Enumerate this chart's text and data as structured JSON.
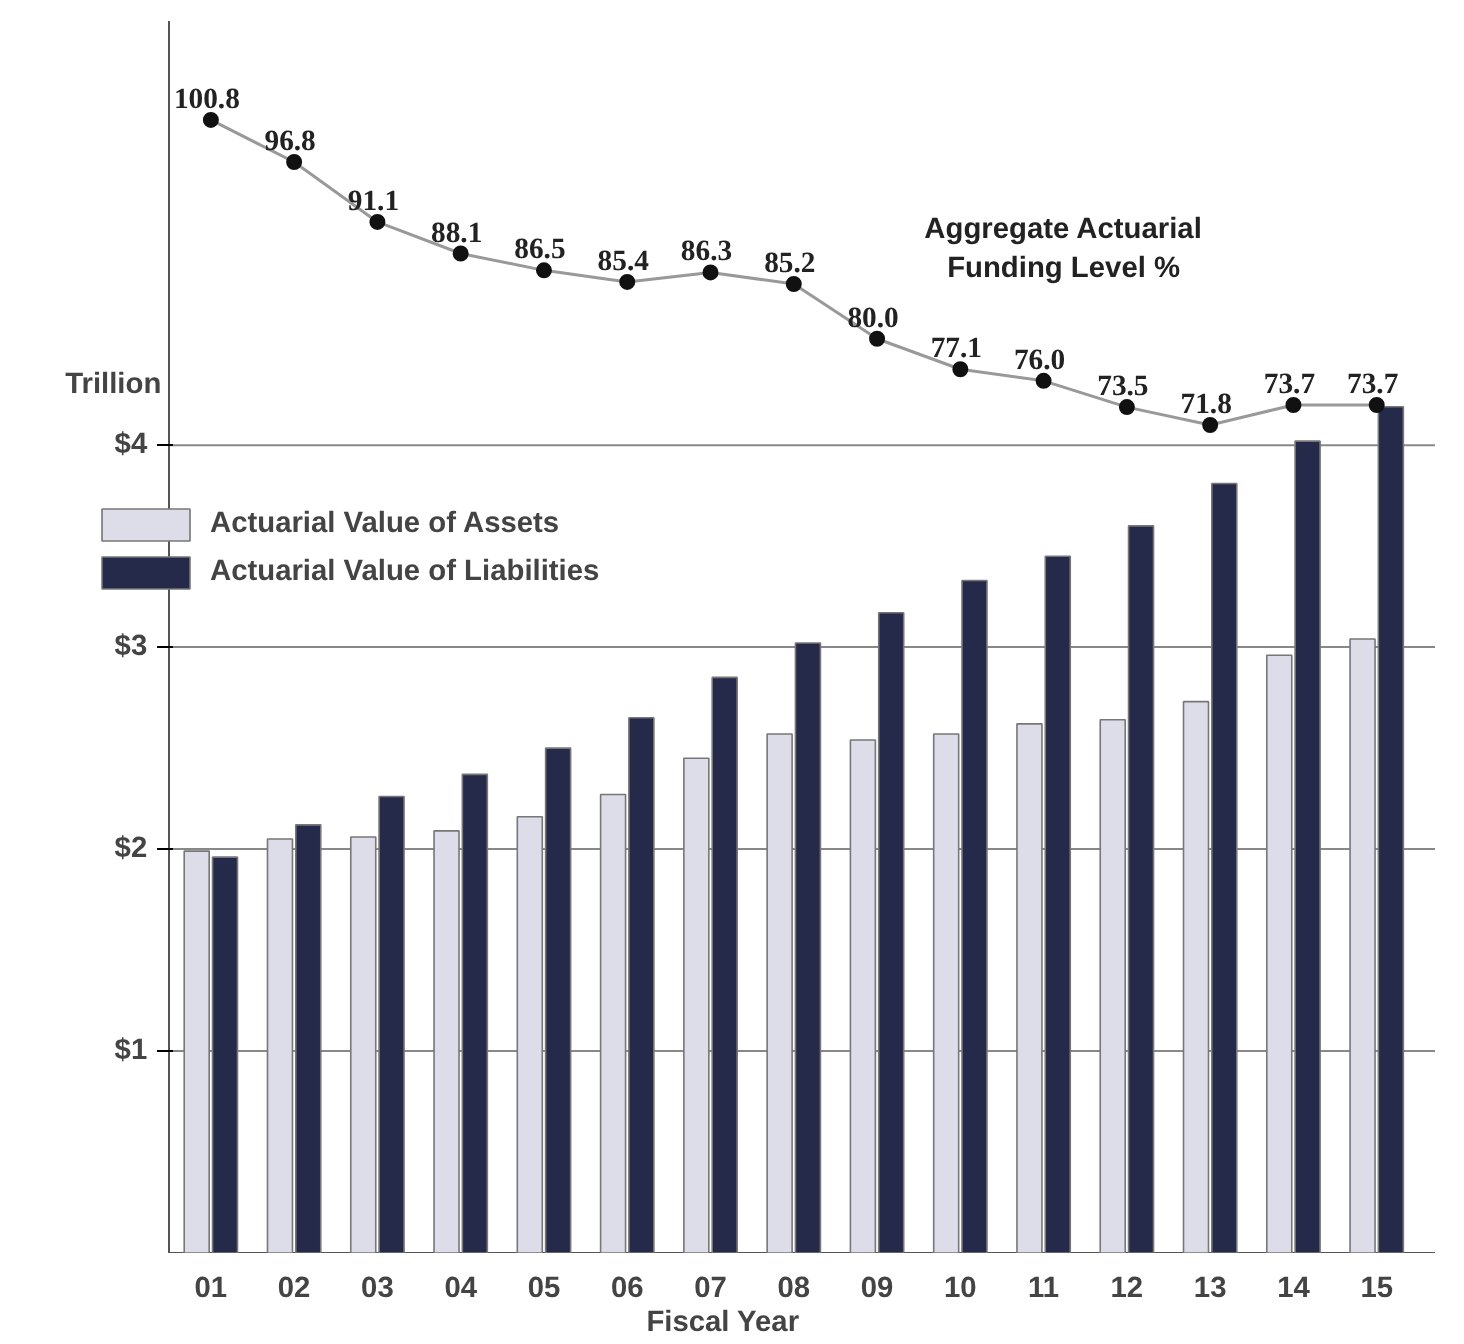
{
  "chart_data": {
    "type": "bar",
    "xlabel": "Fiscal Year",
    "ylabel": "Trillion",
    "categories": [
      "01",
      "02",
      "03",
      "04",
      "05",
      "06",
      "07",
      "08",
      "09",
      "10",
      "11",
      "12",
      "13",
      "14",
      "15"
    ],
    "series": [
      {
        "name": "Actuarial Value of Assets",
        "color": "#dcdde9",
        "values": [
          1.99,
          2.05,
          2.06,
          2.09,
          2.16,
          2.27,
          2.45,
          2.57,
          2.54,
          2.57,
          2.62,
          2.64,
          2.73,
          2.96,
          3.04
        ]
      },
      {
        "name": "Actuarial Value of Liabilities",
        "color": "#262a4a",
        "values": [
          1.96,
          2.12,
          2.26,
          2.37,
          2.5,
          2.65,
          2.85,
          3.02,
          3.17,
          3.33,
          3.45,
          3.6,
          3.81,
          4.02,
          4.19
        ]
      },
      {
        "name": "Aggregate Actuarial\nFunding Level %",
        "type": "line",
        "axis": "y2",
        "color": "#999999",
        "marker": "circle",
        "value_labels": [
          "100.8",
          "96.8",
          "91.1",
          "88.1",
          "86.5",
          "85.4",
          "86.3",
          "85.2",
          "80.0",
          "77.1",
          "76.0",
          "73.5",
          "71.8",
          "73.7",
          "73.7"
        ],
        "values": [
          100.8,
          96.8,
          91.1,
          88.1,
          86.5,
          85.4,
          86.3,
          85.2,
          80.0,
          77.1,
          76.0,
          73.5,
          71.8,
          73.7,
          73.7
        ]
      }
    ],
    "ylim": [
      0,
      6.1
    ],
    "yticks": [
      {
        "value": 1,
        "label": "$1"
      },
      {
        "value": 2,
        "label": "$2"
      },
      {
        "value": 3,
        "label": "$3"
      },
      {
        "value": 4,
        "label": "$4"
      }
    ],
    "y2lim": [
      -6.9,
      110.2
    ],
    "grid": "y",
    "legend": "top left"
  }
}
